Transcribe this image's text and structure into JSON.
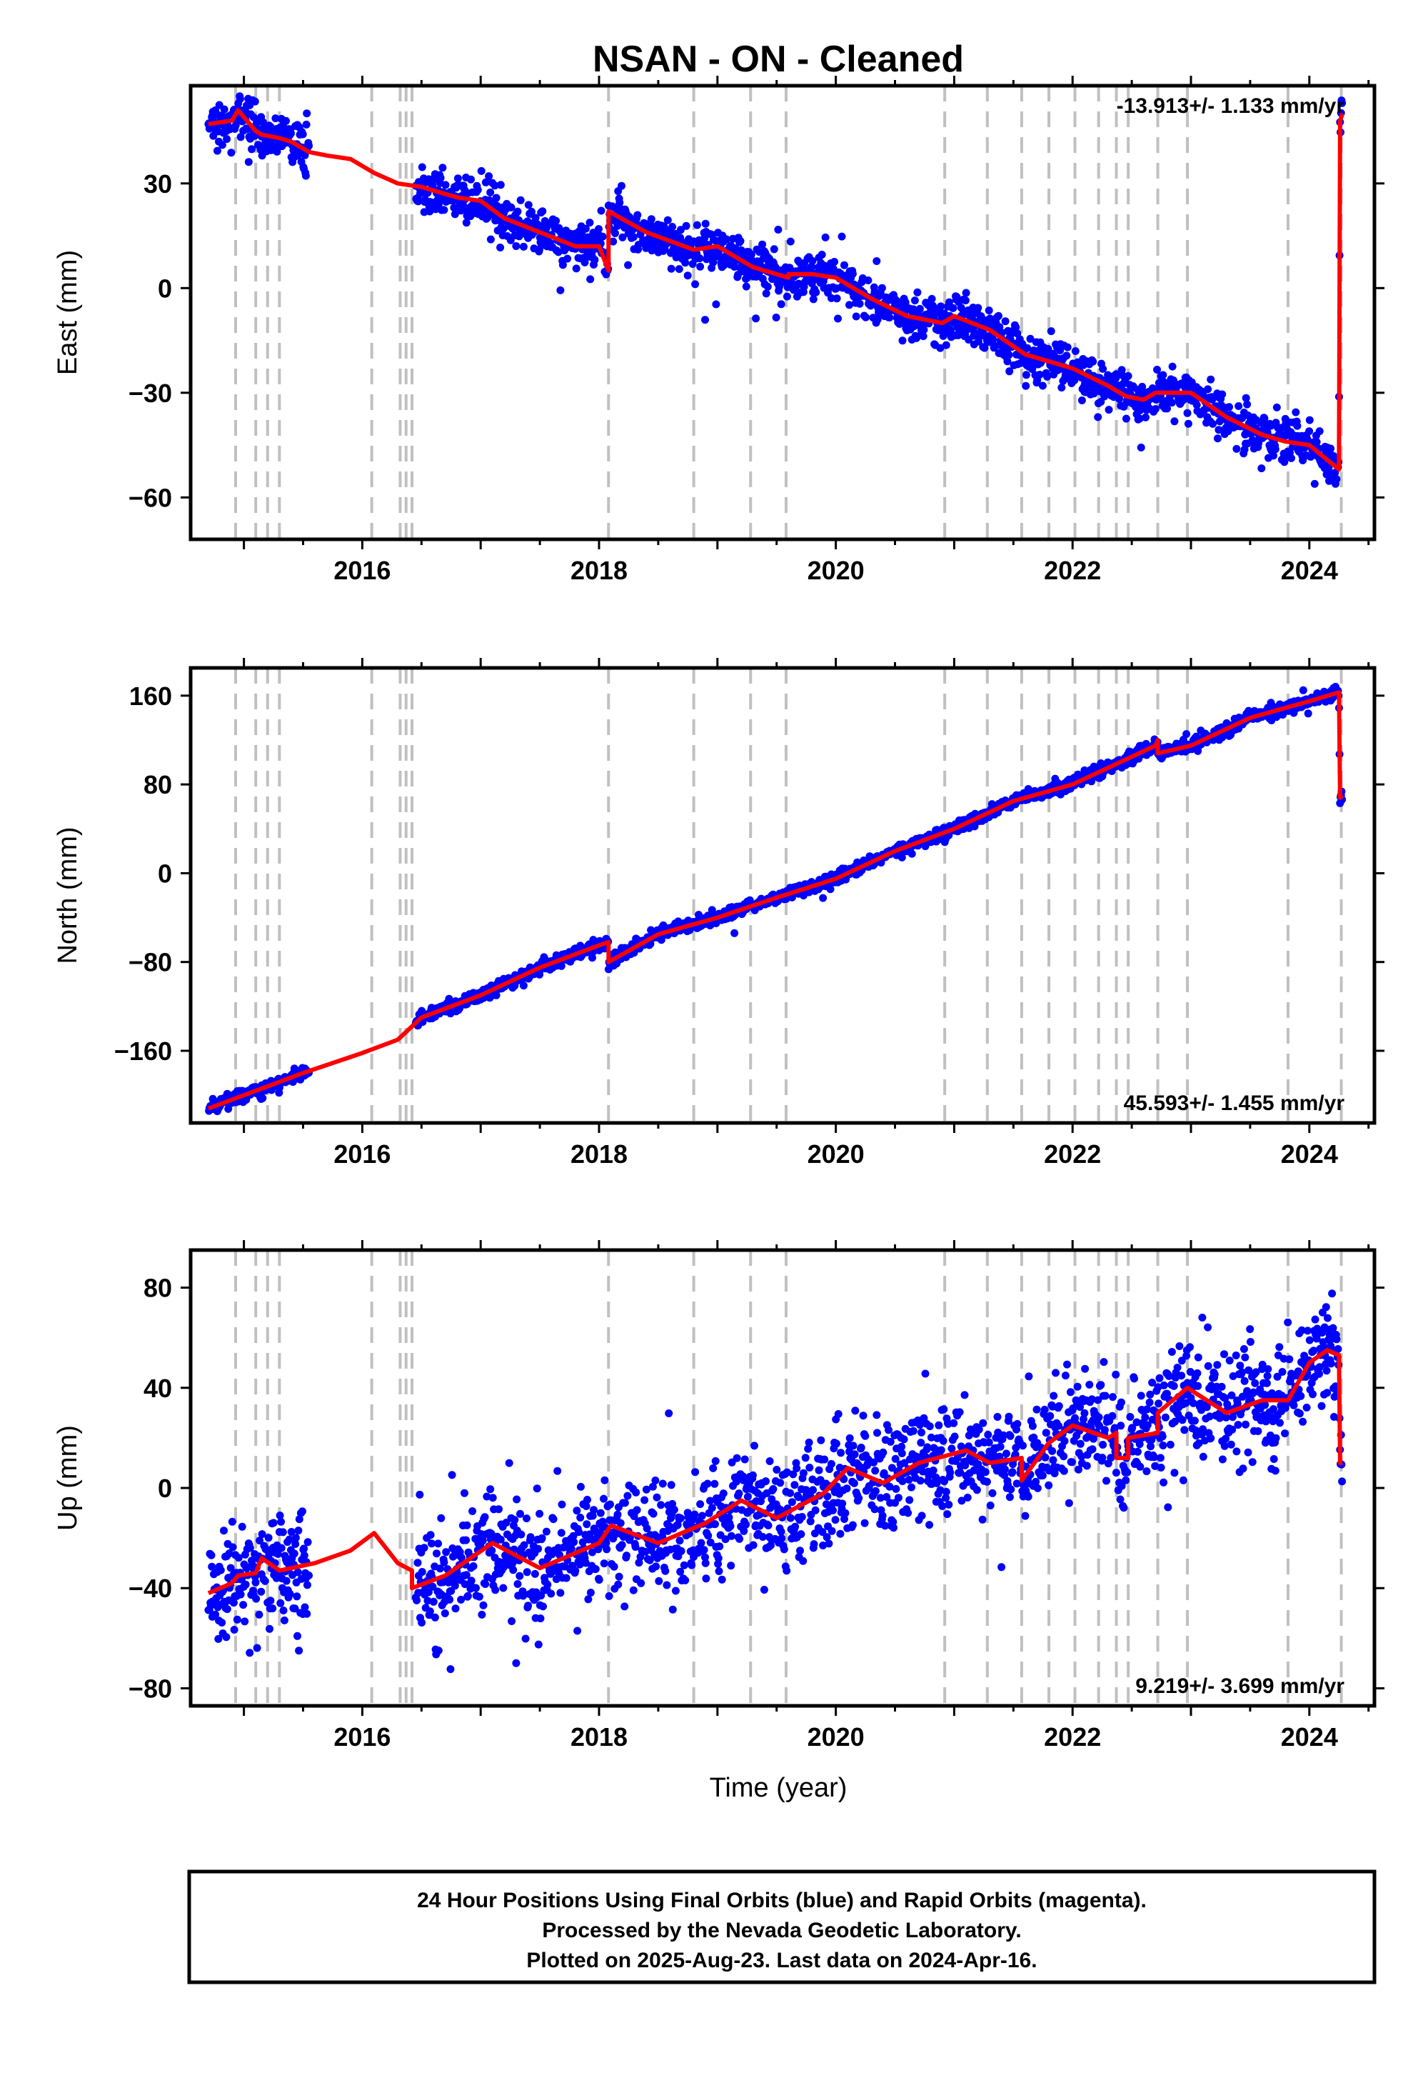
{
  "title": "NSAN  - ON - Cleaned",
  "xlabel": "Time (year)",
  "footer": {
    "line1": "24 Hour Positions Using Final Orbits (blue) and Rapid Orbits (magenta).",
    "line2": "Processed by the Nevada Geodetic Laboratory.",
    "line3": "Plotted on 2025-Aug-23. Last data on 2024-Apr-16."
  },
  "colors": {
    "data": "#0000ff",
    "model": "#ff0000",
    "steps": "#c0c0c0",
    "axis": "#000000"
  },
  "chart_data": [
    {
      "type": "scatter",
      "panel": "east",
      "ylabel": "East (mm)",
      "xlim": [
        2014.55,
        2024.55
      ],
      "ylim": [
        -72,
        58
      ],
      "x_ticks": [
        2016,
        2018,
        2020,
        2022,
        2024
      ],
      "y_ticks": [
        -60,
        -30,
        0,
        30
      ],
      "y_tick_labels": [
        "−60",
        "−30",
        "0",
        "30"
      ],
      "rate_text": "-13.913+/- 1.133 mm/yr",
      "rate_position": "top-right",
      "scatter_sd": 3.2,
      "model": {
        "x": [
          2014.7,
          2014.9,
          2014.95,
          2015.1,
          2015.15,
          2015.3,
          2015.4,
          2015.55,
          2015.7,
          2015.9,
          2016.1,
          2016.3,
          2016.5,
          2016.8,
          2017.0,
          2017.2,
          2017.5,
          2017.8,
          2018.0,
          2018.08,
          2018.08,
          2018.4,
          2018.8,
          2019.0,
          2019.3,
          2019.6,
          2019.6,
          2019.8,
          2020.0,
          2020.3,
          2020.6,
          2020.9,
          2021.0,
          2021.3,
          2021.6,
          2021.8,
          2022.0,
          2022.3,
          2022.45,
          2022.6,
          2022.7,
          2023.0,
          2023.3,
          2023.6,
          2023.8,
          2024.0,
          2024.25,
          2024.26,
          2024.28
        ],
        "y": [
          47,
          48,
          51,
          45,
          44,
          43,
          42,
          39,
          38,
          37,
          33,
          30,
          29,
          26,
          25,
          20,
          16,
          12,
          12,
          5,
          22,
          16,
          11,
          12,
          6,
          3,
          4,
          4,
          3,
          -3,
          -8,
          -10,
          -8,
          -12,
          -19,
          -21,
          -23,
          -28,
          -31,
          -32,
          -30,
          -30,
          -37,
          -42,
          -44,
          -45,
          -52,
          48,
          50
        ]
      },
      "gaps": [
        [
          2015.55,
          2016.45
        ]
      ],
      "step_epochs": [
        2014.93,
        2015.1,
        2015.2,
        2015.3,
        2016.08,
        2016.32,
        2016.37,
        2016.42,
        2018.08,
        2018.8,
        2019.28,
        2019.58,
        2020.92,
        2021.28,
        2021.57,
        2021.8,
        2022.02,
        2022.22,
        2022.37,
        2022.47,
        2022.72,
        2022.97,
        2023.82,
        2024.27
      ]
    },
    {
      "type": "scatter",
      "panel": "north",
      "ylabel": "North (mm)",
      "xlim": [
        2014.55,
        2024.55
      ],
      "ylim": [
        -225,
        185
      ],
      "x_ticks": [
        2016,
        2018,
        2020,
        2022,
        2024
      ],
      "y_ticks": [
        -160,
        -80,
        0,
        80,
        160
      ],
      "y_tick_labels": [
        "−160",
        "−80",
        "0",
        "80",
        "160"
      ],
      "rate_text": "45.593+/- 1.455 mm/yr",
      "rate_position": "bottom-right",
      "scatter_sd": 2.8,
      "model": {
        "x": [
          2014.7,
          2015.0,
          2015.5,
          2016.0,
          2016.3,
          2016.5,
          2017.0,
          2017.5,
          2018.0,
          2018.08,
          2018.08,
          2018.5,
          2019.0,
          2019.5,
          2020.0,
          2020.5,
          2021.0,
          2021.5,
          2022.0,
          2022.4,
          2022.7,
          2022.72,
          2022.72,
          2023.0,
          2023.5,
          2024.0,
          2024.25,
          2024.26,
          2024.28
        ],
        "y": [
          -212,
          -200,
          -180,
          -162,
          -150,
          -130,
          -110,
          -85,
          -65,
          -62,
          -80,
          -55,
          -40,
          -22,
          -5,
          20,
          40,
          65,
          80,
          100,
          115,
          120,
          108,
          115,
          140,
          155,
          163,
          68,
          70
        ]
      },
      "gaps": [
        [
          2015.55,
          2016.45
        ]
      ],
      "step_epochs": [
        2014.93,
        2015.1,
        2015.2,
        2015.3,
        2016.08,
        2016.32,
        2016.37,
        2016.42,
        2018.08,
        2018.8,
        2019.28,
        2019.58,
        2020.92,
        2021.28,
        2021.57,
        2021.8,
        2022.02,
        2022.22,
        2022.37,
        2022.47,
        2022.72,
        2022.97,
        2023.82,
        2024.27
      ]
    },
    {
      "type": "scatter",
      "panel": "up",
      "ylabel": "Up (mm)",
      "xlim": [
        2014.55,
        2024.55
      ],
      "ylim": [
        -87,
        95
      ],
      "x_ticks": [
        2016,
        2018,
        2020,
        2022,
        2024
      ],
      "y_ticks": [
        -80,
        -40,
        0,
        40,
        80
      ],
      "y_tick_labels": [
        "−80",
        "−40",
        "0",
        "40",
        "80"
      ],
      "rate_text": "9.219+/- 3.699 mm/yr",
      "rate_position": "bottom-right",
      "scatter_sd": 11,
      "model": {
        "x": [
          2014.7,
          2014.9,
          2014.95,
          2015.1,
          2015.15,
          2015.3,
          2015.6,
          2015.9,
          2016.1,
          2016.3,
          2016.42,
          2016.42,
          2016.7,
          2017.1,
          2017.5,
          2018.0,
          2018.1,
          2018.5,
          2018.9,
          2019.2,
          2019.5,
          2019.9,
          2020.1,
          2020.4,
          2020.7,
          2021.1,
          2021.3,
          2021.57,
          2021.57,
          2021.8,
          2022.0,
          2022.3,
          2022.37,
          2022.37,
          2022.47,
          2022.47,
          2022.72,
          2022.72,
          2022.97,
          2023.3,
          2023.6,
          2023.82,
          2024.0,
          2024.15,
          2024.25,
          2024.26,
          2024.28
        ],
        "y": [
          -42,
          -38,
          -35,
          -34,
          -28,
          -33,
          -30,
          -25,
          -18,
          -30,
          -33,
          -40,
          -35,
          -22,
          -32,
          -22,
          -15,
          -22,
          -14,
          -5,
          -12,
          -2,
          8,
          2,
          10,
          15,
          10,
          12,
          3,
          18,
          25,
          20,
          22,
          12,
          12,
          20,
          22,
          30,
          40,
          30,
          35,
          35,
          50,
          55,
          53,
          10,
          10
        ]
      },
      "gaps": [
        [
          2015.55,
          2016.45
        ]
      ],
      "step_epochs": [
        2014.93,
        2015.1,
        2015.2,
        2015.3,
        2016.08,
        2016.32,
        2016.37,
        2016.42,
        2018.08,
        2018.8,
        2019.28,
        2019.58,
        2020.92,
        2021.28,
        2021.57,
        2021.8,
        2022.02,
        2022.22,
        2022.37,
        2022.47,
        2022.72,
        2022.97,
        2023.82,
        2024.27
      ]
    }
  ]
}
